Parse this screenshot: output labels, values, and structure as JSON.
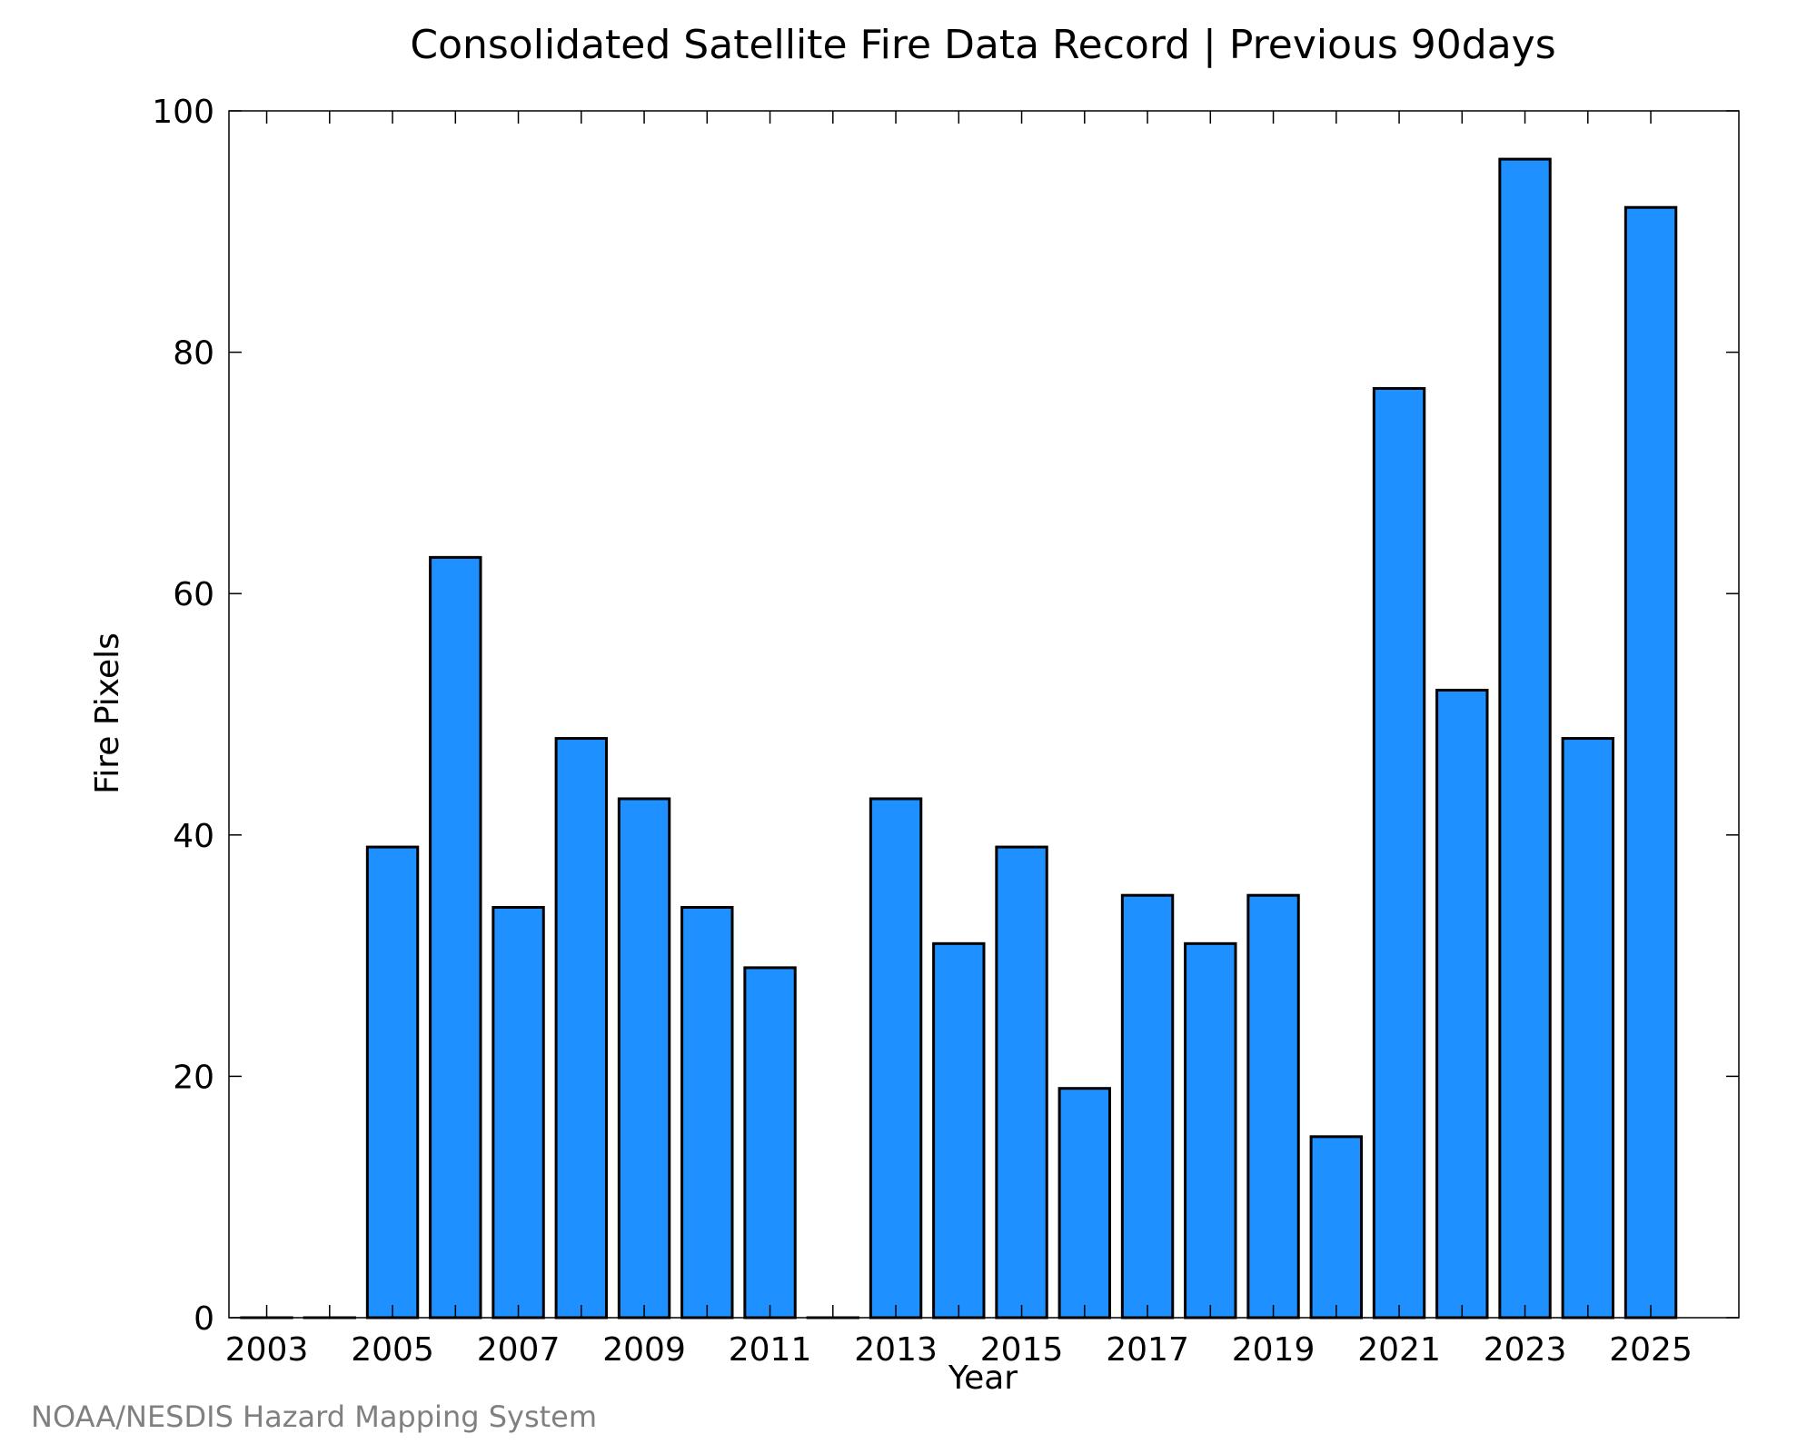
{
  "chart_data": {
    "type": "bar",
    "title": "Consolidated Satellite Fire Data Record | Previous 90days",
    "xlabel": "Year",
    "ylabel": "Fire Pixels",
    "categories": [
      2003,
      2004,
      2005,
      2006,
      2007,
      2008,
      2009,
      2010,
      2011,
      2012,
      2013,
      2014,
      2015,
      2016,
      2017,
      2018,
      2019,
      2020,
      2021,
      2022,
      2023,
      2024,
      2025
    ],
    "values": [
      0,
      0,
      39,
      63,
      34,
      48,
      43,
      34,
      29,
      0,
      43,
      31,
      39,
      19,
      35,
      31,
      35,
      15,
      77,
      52,
      96,
      48,
      92
    ],
    "x_tick_labels": [
      "2003",
      "2005",
      "2007",
      "2009",
      "2011",
      "2013",
      "2015",
      "2017",
      "2019",
      "2021",
      "2023",
      "2025"
    ],
    "y_ticks": [
      0,
      20,
      40,
      60,
      80,
      100
    ],
    "ylim": [
      0,
      100
    ],
    "xlim": [
      2002.4,
      2026.4
    ],
    "grid": false,
    "bar_color": "#1e90ff",
    "bar_edge_color": "#000000"
  },
  "credit": "NOAA/NESDIS Hazard Mapping System"
}
